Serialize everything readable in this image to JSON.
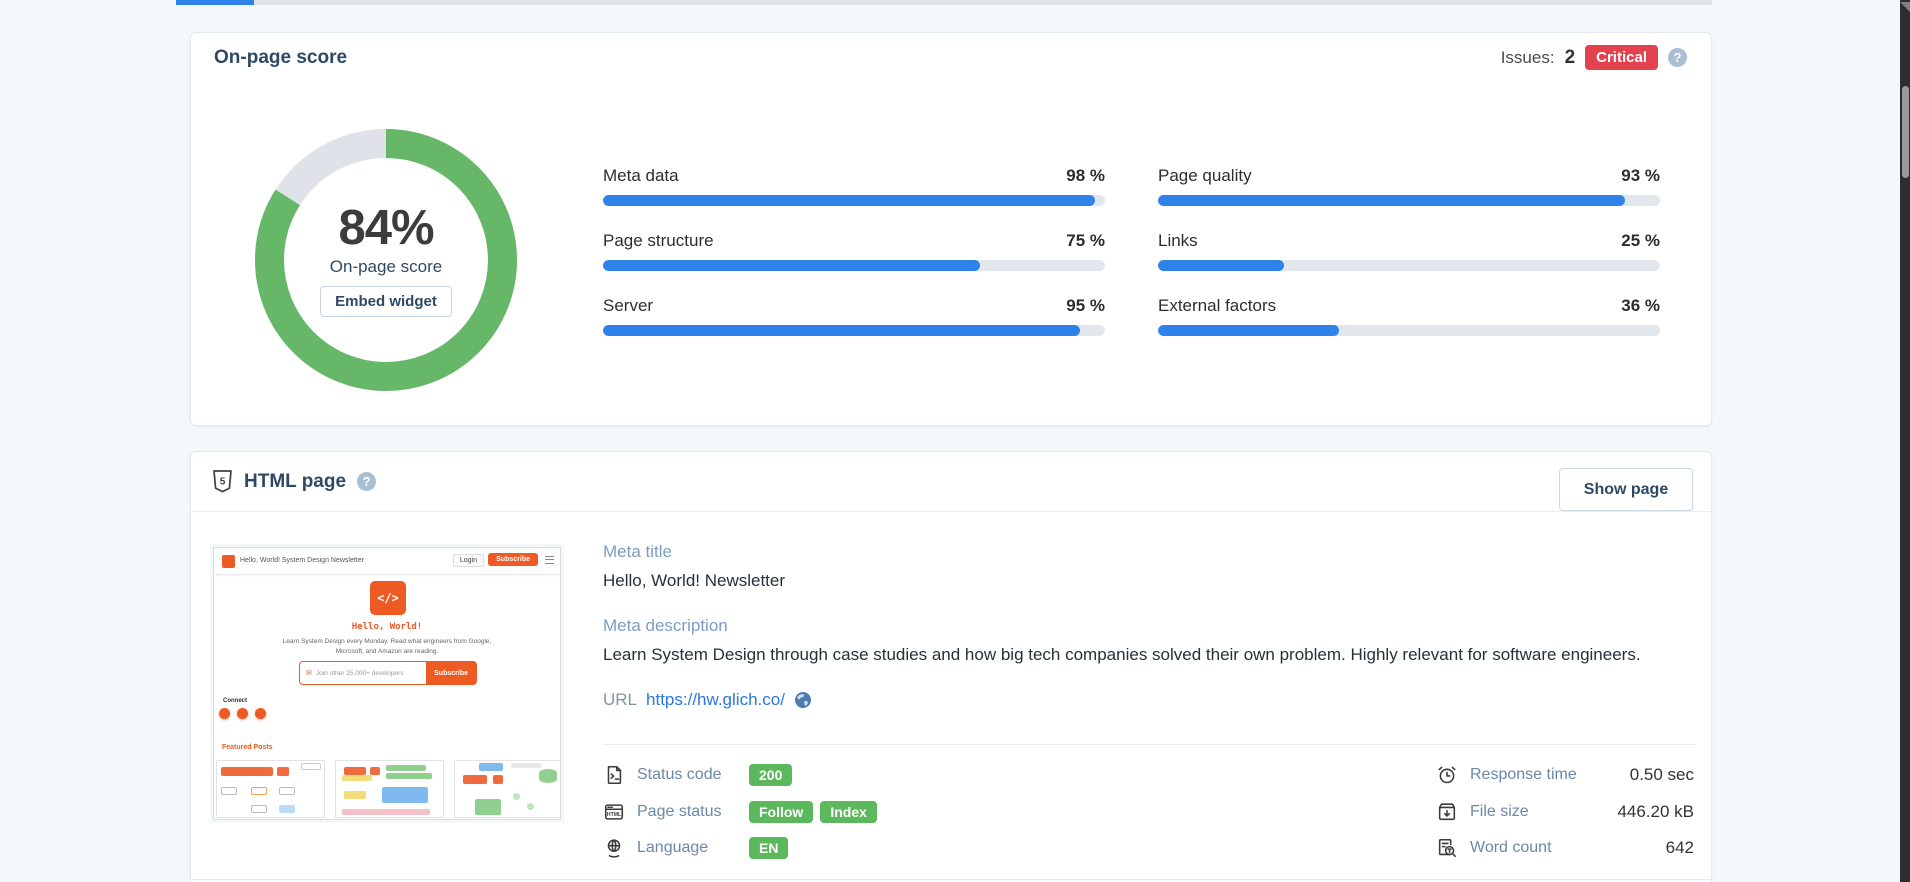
{
  "theme": {
    "accent_blue": "#2e82e9",
    "donut_green": "#66b868",
    "badge_green": "#5cb85c",
    "critical_red": "#e2434e",
    "heading_slate": "#2e4963",
    "thumbnail_orange": "#ee5a24"
  },
  "onpage_card": {
    "title": "On-page score",
    "issues_label": "Issues:",
    "issues_count": "2",
    "issues_severity": "Critical",
    "donut": {
      "percent": 84,
      "value_label": "84%",
      "caption": "On-page score",
      "button_label": "Embed widget"
    },
    "bars": [
      {
        "label": "Meta data",
        "value": 98,
        "display": "98 %"
      },
      {
        "label": "Page structure",
        "value": 75,
        "display": "75 %"
      },
      {
        "label": "Server",
        "value": 95,
        "display": "95 %"
      },
      {
        "label": "Page quality",
        "value": 93,
        "display": "93 %"
      },
      {
        "label": "Links",
        "value": 25,
        "display": "25 %"
      },
      {
        "label": "External factors",
        "value": 36,
        "display": "36 %"
      }
    ]
  },
  "html_page_card": {
    "title": "HTML page",
    "show_page_label": "Show page",
    "meta_title": {
      "label": "Meta title",
      "value": "Hello, World! Newsletter"
    },
    "meta_description": {
      "label": "Meta description",
      "value": "Learn System Design through case studies and how big tech companies solved their own problem. Highly relevant for software engineers."
    },
    "url": {
      "label": "URL",
      "value": "https://hw.glich.co/"
    },
    "stats_left": [
      {
        "label": "Status code",
        "badge1": "200",
        "badge2": ""
      },
      {
        "label": "Page status",
        "badge1": "Follow",
        "badge2": "Index"
      },
      {
        "label": "Language",
        "badge1": "EN",
        "badge2": ""
      }
    ],
    "stats_right": [
      {
        "label": "Response time",
        "value": "0.50 sec"
      },
      {
        "label": "File size",
        "value": "446.20 kB"
      },
      {
        "label": "Word count",
        "value": "642"
      }
    ],
    "thumbnail": {
      "nav_brand": "Hello, World! System Design Newsletter",
      "nav_login": "Login",
      "nav_subscribe": "Subscribe",
      "hero_logo_glyph": "</>",
      "hero_title": "Hello, World!",
      "tagline_line1": "Learn System Design every Monday. Read what engineers from Google,",
      "tagline_line2": "Microsoft, and Amazon are reading.",
      "subscribe_placeholder": "Join other 25,000+ developers",
      "subscribe_button": "Subscribe",
      "connect_label": "Connect",
      "featured_label": "Featured Posts"
    }
  }
}
